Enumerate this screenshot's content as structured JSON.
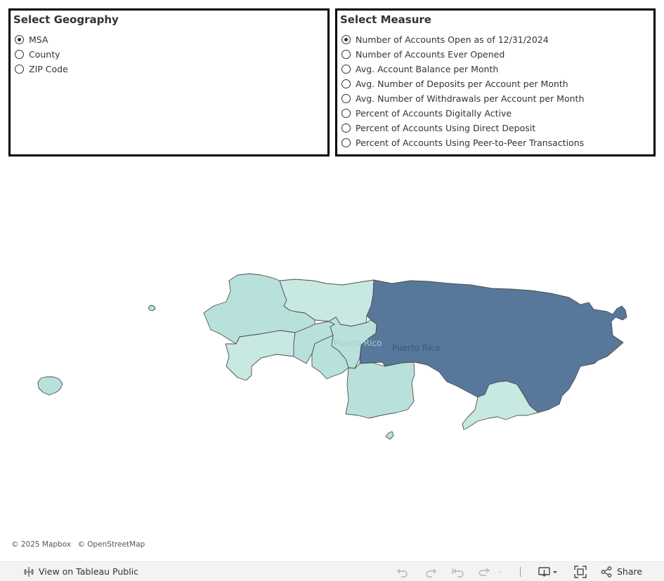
{
  "geography_filter": {
    "title": "Select Geography",
    "selected": "MSA",
    "options": [
      "MSA",
      "County",
      "ZIP Code"
    ]
  },
  "measure_filter": {
    "title": "Select Measure",
    "selected": "Number of Accounts Open as of 12/31/2024",
    "options": [
      "Number of Accounts Open as of 12/31/2024",
      "Number of Accounts Ever Opened",
      "Avg. Account Balance per Month",
      "Avg. Number of Deposits per Account per Month",
      "Avg. Number of Withdrawals per Account per Month",
      "Percent of Accounts Digitally Active",
      "Percent of Accounts Using Direct Deposit",
      "Percent of Accounts Using Peer-to-Peer Transactions"
    ]
  },
  "map": {
    "labels": [
      "Puerto Rico",
      "Puerto Rico"
    ],
    "colors": {
      "high": "#58789b",
      "low": "#b9e1dc",
      "lower": "#c8e8e2",
      "outline": "#4d4d4d"
    }
  },
  "attribution": {
    "mapbox": "© 2025 Mapbox",
    "osm": "© OpenStreetMap"
  },
  "toolbar": {
    "view_label": "View on Tableau Public",
    "share_label": "Share",
    "icons": [
      "tableau-logo-icon",
      "undo-icon",
      "redo-icon",
      "revert-icon",
      "refresh-icon",
      "download-icon",
      "fullscreen-icon",
      "share-icon"
    ]
  }
}
